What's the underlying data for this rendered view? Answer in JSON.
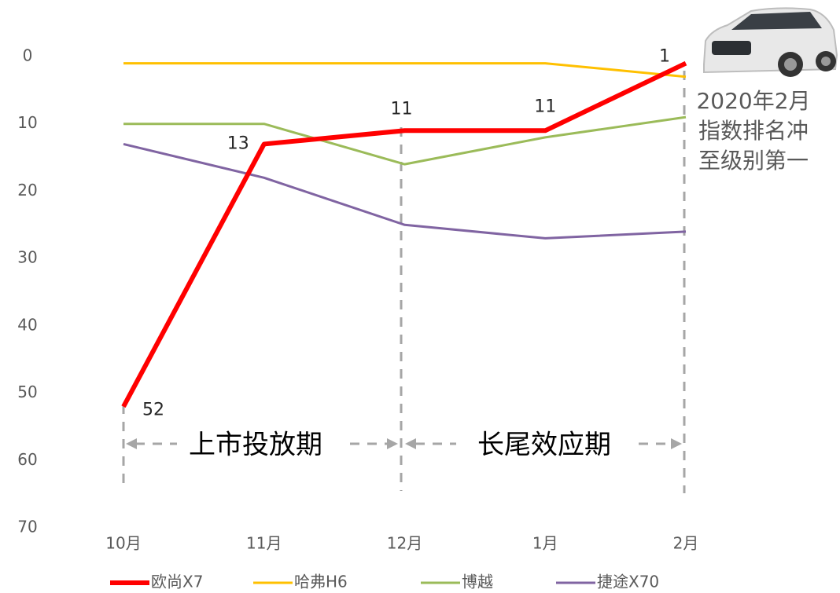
{
  "chart_data": {
    "type": "line",
    "categories": [
      "10月",
      "11月",
      "12月",
      "1月",
      "2月"
    ],
    "series": [
      {
        "name": "欧尚X7",
        "color": "#ff0000",
        "values": [
          52,
          13,
          11,
          11,
          1
        ]
      },
      {
        "name": "哈弗H6",
        "color": "#ffc000",
        "values": [
          1,
          1,
          1,
          1,
          3
        ]
      },
      {
        "name": "博越",
        "color": "#9bbb59",
        "values": [
          10,
          10,
          16,
          12,
          9
        ]
      },
      {
        "name": "捷途X70",
        "color": "#8064a2",
        "values": [
          13,
          18,
          25,
          27,
          26
        ]
      }
    ],
    "ylim": [
      0,
      70
    ],
    "yticks": [
      0,
      10,
      20,
      30,
      40,
      50,
      60,
      70
    ],
    "y_reversed": true,
    "annotations": [
      "2020年2月",
      "指数排名冲",
      "至级别第一"
    ],
    "periods": [
      "上市投放期",
      "长尾效应期"
    ]
  }
}
